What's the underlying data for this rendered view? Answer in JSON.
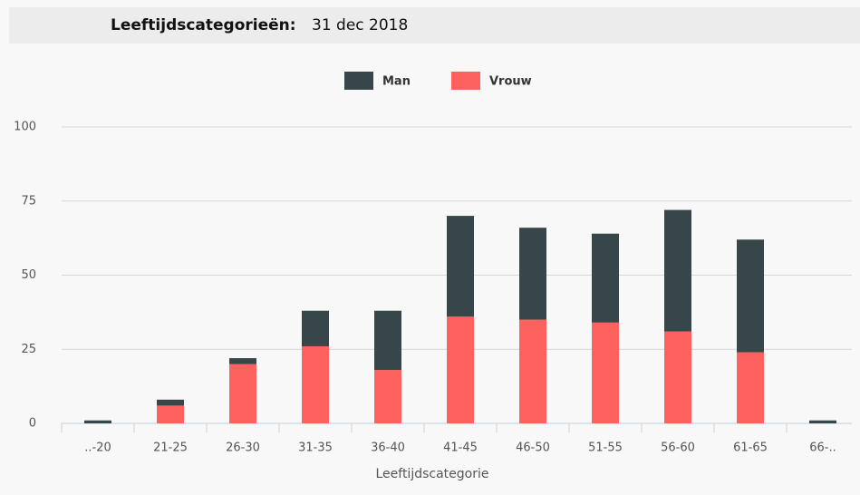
{
  "chart_data": {
    "type": "stacked_bar",
    "title": "Leeftijdscategorieën:",
    "subtitle": "31 dec 2018",
    "x_label": "Leeftijdscategorie",
    "categories": [
      "..-20",
      "21-25",
      "26-30",
      "31-35",
      "36-40",
      "41-45",
      "46-50",
      "51-55",
      "56-60",
      "61-65",
      "66-.."
    ],
    "series": [
      {
        "name": "Man",
        "color": "#374649",
        "values": [
          1,
          2,
          2,
          12,
          20,
          34,
          31,
          30,
          41,
          38,
          1
        ]
      },
      {
        "name": "Vrouw",
        "color": "#fd625e",
        "values": [
          0,
          6,
          20,
          26,
          18,
          36,
          35,
          34,
          31,
          24,
          0
        ]
      }
    ],
    "ylim": [
      0,
      100
    ],
    "yticks": [
      0,
      25,
      50,
      75,
      100
    ],
    "grid": true
  }
}
